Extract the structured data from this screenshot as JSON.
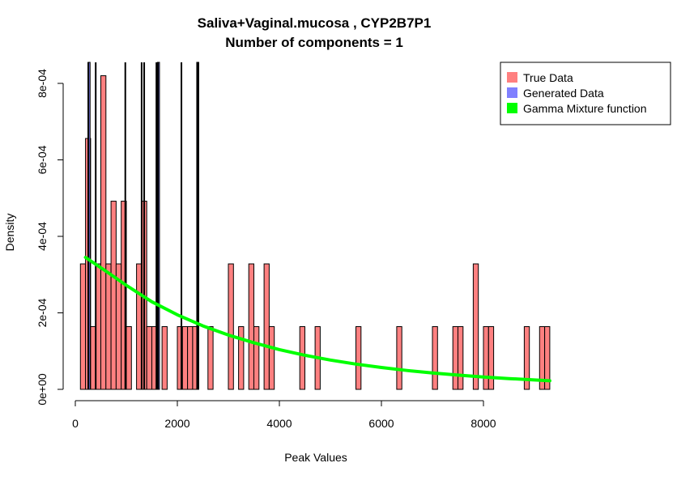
{
  "chart_data": {
    "type": "bar",
    "title": "Saliva+Vaginal.mucosa , CYP2B7P1",
    "subtitle": "Number of components =  1",
    "xlabel": "Peak Values",
    "ylabel": "Density",
    "xlim": [
      0,
      9400
    ],
    "ylim": [
      0,
      0.00086
    ],
    "x_ticks": [
      0,
      2000,
      4000,
      6000,
      8000
    ],
    "x_tick_labels": [
      "0",
      "2000",
      "4000",
      "6000",
      "8000"
    ],
    "y_ticks": [
      0,
      0.0002,
      0.0004,
      0.0006,
      0.0008
    ],
    "y_tick_labels": [
      "0e+00",
      "2e-04",
      "4e-04",
      "6e-04",
      "8e-04"
    ],
    "bin_width": 100,
    "true_data": {
      "name": "True Data",
      "color": "#ff8080",
      "bins": [
        {
          "x0": 100,
          "density": 0.000328
        },
        {
          "x0": 200,
          "density": 0.000656
        },
        {
          "x0": 300,
          "density": 0.000164
        },
        {
          "x0": 400,
          "density": 0.000328
        },
        {
          "x0": 500,
          "density": 0.00082
        },
        {
          "x0": 600,
          "density": 0.000328
        },
        {
          "x0": 700,
          "density": 0.000492
        },
        {
          "x0": 800,
          "density": 0.000328
        },
        {
          "x0": 900,
          "density": 0.000492
        },
        {
          "x0": 1000,
          "density": 0.000164
        },
        {
          "x0": 1200,
          "density": 0.000328
        },
        {
          "x0": 1300,
          "density": 0.000492
        },
        {
          "x0": 1400,
          "density": 0.000164
        },
        {
          "x0": 1500,
          "density": 0.000164
        },
        {
          "x0": 1700,
          "density": 0.000164
        },
        {
          "x0": 2000,
          "density": 0.000164
        },
        {
          "x0": 2100,
          "density": 0.000164
        },
        {
          "x0": 2200,
          "density": 0.000164
        },
        {
          "x0": 2300,
          "density": 0.000164
        },
        {
          "x0": 2600,
          "density": 0.000164
        },
        {
          "x0": 3000,
          "density": 0.000328
        },
        {
          "x0": 3200,
          "density": 0.000164
        },
        {
          "x0": 3400,
          "density": 0.000328
        },
        {
          "x0": 3500,
          "density": 0.000164
        },
        {
          "x0": 3700,
          "density": 0.000328
        },
        {
          "x0": 3800,
          "density": 0.000164
        },
        {
          "x0": 4400,
          "density": 0.000164
        },
        {
          "x0": 4700,
          "density": 0.000164
        },
        {
          "x0": 5500,
          "density": 0.000164
        },
        {
          "x0": 6300,
          "density": 0.000164
        },
        {
          "x0": 7000,
          "density": 0.000164
        },
        {
          "x0": 7400,
          "density": 0.000164
        },
        {
          "x0": 7500,
          "density": 0.000164
        },
        {
          "x0": 7800,
          "density": 0.000328
        },
        {
          "x0": 8000,
          "density": 0.000164
        },
        {
          "x0": 8100,
          "density": 0.000164
        },
        {
          "x0": 8800,
          "density": 0.000164
        },
        {
          "x0": 9100,
          "density": 0.000164
        },
        {
          "x0": 9200,
          "density": 0.000164
        }
      ]
    },
    "generated_data": {
      "name": "Generated Data",
      "color": "#8080ff",
      "bins": [
        {
          "x0": 250,
          "x1": 290
        },
        {
          "x0": 1610,
          "x1": 1650
        },
        {
          "x0": 2380,
          "x1": 2420
        }
      ]
    },
    "vertical_lines": [
      255,
      400,
      980,
      1300,
      1350,
      1590,
      1620,
      2080,
      2400
    ],
    "gamma_mixture": {
      "name": "Gamma Mixture function",
      "color": "#00ff00",
      "x": [
        200,
        600,
        1000,
        1500,
        2000,
        2500,
        3000,
        3500,
        4000,
        4500,
        5000,
        5500,
        6000,
        6500,
        7000,
        7500,
        8000,
        8500,
        9000,
        9300
      ],
      "y": [
        0.000345,
        0.000309,
        0.000272,
        0.000229,
        0.000195,
        0.000166,
        0.000142,
        0.000122,
        0.000104,
        8.91e-05,
        7.67e-05,
        6.61e-05,
        5.71e-05,
        4.94e-05,
        4.28e-05,
        3.72e-05,
        3.23e-05,
        2.81e-05,
        2.45e-05,
        2.25e-05
      ]
    },
    "legend": {
      "placement": "top-right",
      "entries": [
        "True Data",
        "Generated Data",
        "Gamma Mixture function"
      ]
    }
  }
}
